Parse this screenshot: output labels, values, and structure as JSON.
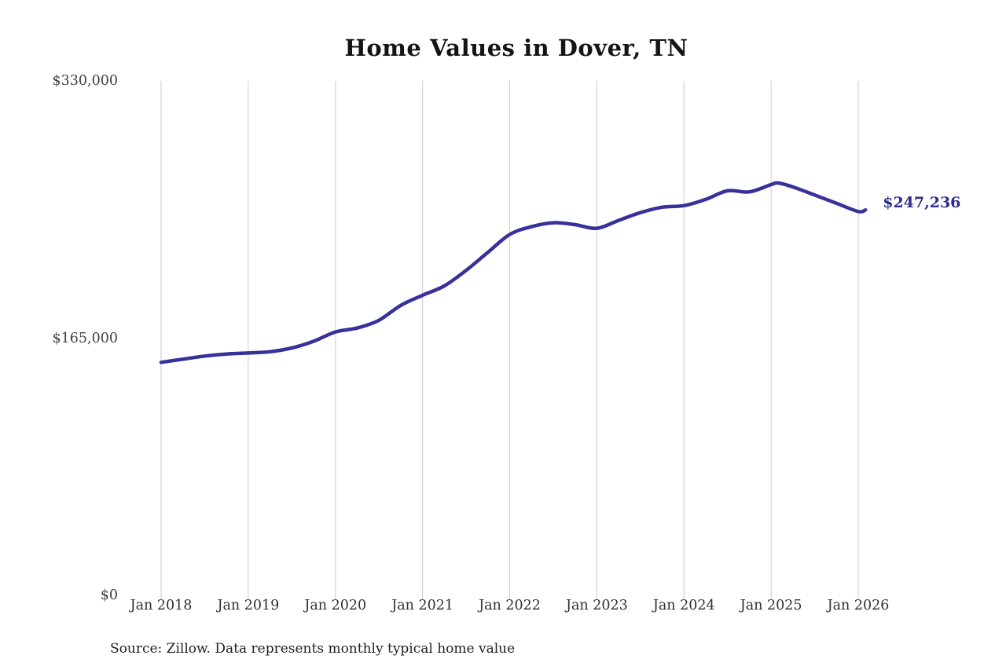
{
  "chart": {
    "title": "Home Values in Dover, TN",
    "end_label": "$247,236",
    "source": "Source: Zillow. Data represents monthly typical home value"
  },
  "colors": {
    "line": "#37319b",
    "end_label": "#2e2a8e",
    "gridline": "#cbcbcb"
  },
  "chart_data": {
    "type": "line",
    "title": "Home Values in Dover, TN",
    "xlabel": "",
    "ylabel": "",
    "ylim": [
      0,
      330000
    ],
    "grid": "vertical-only",
    "legend": "none",
    "x_tick_labels": [
      "Jan 2018",
      "Jan 2019",
      "Jan 2020",
      "Jan 2021",
      "Jan 2022",
      "Jan 2023",
      "Jan 2024",
      "Jan 2025",
      "Jan 2026"
    ],
    "y_tick_labels": [
      {
        "label": "$330,000",
        "value": 330000
      },
      {
        "label": "$165,000",
        "value": 165000
      },
      {
        "label": "$0",
        "value": 0
      }
    ],
    "final_value": 247236,
    "final_value_label": "$247,236",
    "series": [
      {
        "name": "Monthly typical home value",
        "points": [
          {
            "m": 0,
            "date": "Jan 2018",
            "value": 149500
          },
          {
            "m": 3,
            "date": "Apr 2018",
            "value": 151500
          },
          {
            "m": 6,
            "date": "Jul 2018",
            "value": 153500
          },
          {
            "m": 9,
            "date": "Oct 2018",
            "value": 154800
          },
          {
            "m": 12,
            "date": "Jan 2019",
            "value": 155500
          },
          {
            "m": 15,
            "date": "Apr 2019",
            "value": 156300
          },
          {
            "m": 18,
            "date": "Jul 2019",
            "value": 158700
          },
          {
            "m": 21,
            "date": "Oct 2019",
            "value": 163000
          },
          {
            "m": 24,
            "date": "Jan 2020",
            "value": 169000
          },
          {
            "m": 27,
            "date": "Apr 2020",
            "value": 171500
          },
          {
            "m": 30,
            "date": "Jul 2020",
            "value": 176500
          },
          {
            "m": 33,
            "date": "Oct 2020",
            "value": 186000
          },
          {
            "m": 36,
            "date": "Jan 2021",
            "value": 192500
          },
          {
            "m": 39,
            "date": "Apr 2021",
            "value": 198500
          },
          {
            "m": 42,
            "date": "Jul 2021",
            "value": 208500
          },
          {
            "m": 45,
            "date": "Oct 2021",
            "value": 220000
          },
          {
            "m": 48,
            "date": "Jan 2022",
            "value": 231500
          },
          {
            "m": 51,
            "date": "Apr 2022",
            "value": 236500
          },
          {
            "m": 54,
            "date": "Jul 2022",
            "value": 239000
          },
          {
            "m": 57,
            "date": "Oct 2022",
            "value": 237800
          },
          {
            "m": 60,
            "date": "Jan 2023",
            "value": 235500
          },
          {
            "m": 63,
            "date": "Apr 2023",
            "value": 240500
          },
          {
            "m": 66,
            "date": "Jul 2023",
            "value": 245500
          },
          {
            "m": 69,
            "date": "Oct 2023",
            "value": 249000
          },
          {
            "m": 72,
            "date": "Jan 2024",
            "value": 250000
          },
          {
            "m": 75,
            "date": "Apr 2024",
            "value": 254000
          },
          {
            "m": 78,
            "date": "Jul 2024",
            "value": 259500
          },
          {
            "m": 81,
            "date": "Oct 2024",
            "value": 258800
          },
          {
            "m": 84,
            "date": "Jan 2025",
            "value": 263500
          },
          {
            "m": 85,
            "date": "Feb 2025",
            "value": 264500
          },
          {
            "m": 87,
            "date": "Apr 2025",
            "value": 262000
          },
          {
            "m": 90,
            "date": "Jul 2025",
            "value": 256800
          },
          {
            "m": 93,
            "date": "Oct 2025",
            "value": 251500
          },
          {
            "m": 96,
            "date": "Jan 2026",
            "value": 246200
          },
          {
            "m": 97,
            "date": "Feb 2026",
            "value": 247236
          }
        ]
      }
    ]
  }
}
